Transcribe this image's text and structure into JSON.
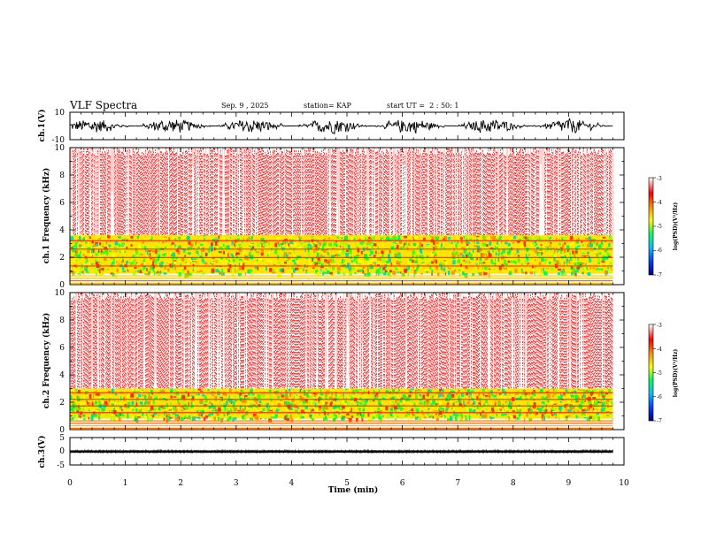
{
  "chart_data": {
    "type": "heatmap",
    "header": {
      "title": "VLF Spectra",
      "date": "Sep. 9 , 2025",
      "station": "station= KAP",
      "start": "start UT =  2 : 50: 1"
    },
    "x_axis": {
      "label": "Time (min)",
      "range": [
        0,
        10
      ],
      "ticks": [
        "0",
        "1",
        "2",
        "3",
        "4",
        "5",
        "6",
        "7",
        "8",
        "9",
        "10"
      ],
      "data_end": 9.8
    },
    "panels": [
      {
        "id": "ch1-waveform",
        "ylabel": "ch.1(V)",
        "ylim": [
          -10,
          10
        ],
        "yticks": [
          "10",
          "-10"
        ],
        "kind": "waveform",
        "amplitude_range": [
          -6,
          6
        ]
      },
      {
        "id": "ch1-spectrogram",
        "ylabel": "ch.1  Frequency (kHz)",
        "ylim": [
          0,
          10
        ],
        "yticks": [
          "0",
          "2",
          "4",
          "6",
          "8",
          "10"
        ],
        "kind": "spectrogram",
        "dense_band_khz": [
          0.8,
          3.6
        ],
        "colorbar": {
          "label": "log(PSD)(V²/Hz)",
          "range": [
            -7,
            -3
          ],
          "ticks": [
            "-3",
            "-4",
            "-5",
            "-6",
            "-7"
          ]
        }
      },
      {
        "id": "ch2-spectrogram",
        "ylabel": "ch.2  Frequency (kHz)",
        "ylim": [
          0,
          10
        ],
        "yticks": [
          "0",
          "2",
          "4",
          "6",
          "8",
          "10"
        ],
        "kind": "spectrogram",
        "dense_band_khz": [
          0.8,
          3.0
        ],
        "colorbar": {
          "label": "log(PSD)(V²/Hz)",
          "range": [
            -7,
            -3
          ],
          "ticks": [
            "-3",
            "-4",
            "-5",
            "-6",
            "-7"
          ]
        }
      },
      {
        "id": "ch3-waveform",
        "ylabel": "ch.3(V)",
        "ylim": [
          -5,
          5
        ],
        "yticks": [
          "5",
          "0",
          "-5"
        ],
        "kind": "waveform",
        "amplitude_range": [
          -0.5,
          0.3
        ]
      }
    ],
    "colors": {
      "colormap": [
        "#00007a",
        "#0040ff",
        "#00c0ff",
        "#00ff60",
        "#ffff00",
        "#ff9000",
        "#ff0000",
        "#ffffff"
      ]
    }
  }
}
